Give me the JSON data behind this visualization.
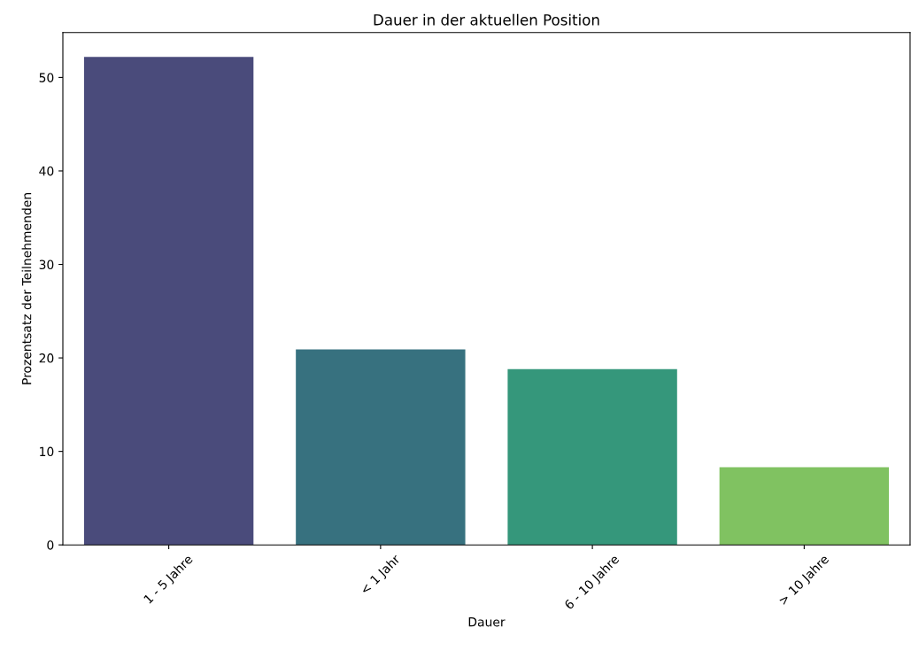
{
  "chart_data": {
    "type": "bar",
    "title": "Dauer in der aktuellen Position",
    "xlabel": "Dauer",
    "ylabel": "Prozentsatz der Teilnehmenden",
    "categories": [
      "1 - 5 Jahre",
      "< 1 Jahr",
      "6 - 10 Jahre",
      "> 10 Jahre"
    ],
    "values": [
      52.2,
      20.9,
      18.8,
      8.3
    ],
    "colors": [
      "#4a4b7b",
      "#37717f",
      "#35977b",
      "#80c261"
    ],
    "ylim": [
      0,
      54.8
    ],
    "yticks": [
      0,
      10,
      20,
      30,
      40,
      50
    ],
    "grid": false,
    "legend": false
  }
}
